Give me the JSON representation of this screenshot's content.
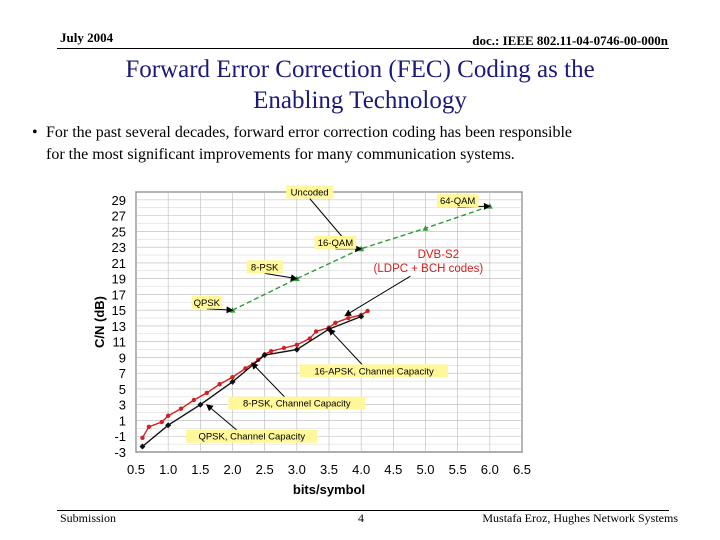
{
  "header": {
    "date": "July 2004",
    "doc_id": "doc.: IEEE 802.11-04-0746-00-000n"
  },
  "slide": {
    "title_line1": "Forward Error Correction (FEC) Coding as the",
    "title_line2": "Enabling Technology",
    "bullet_char": "•",
    "bullet_line1": "For the past several decades, forward error correction coding has been responsible",
    "bullet_line2": "for the most significant improvements for many communication systems."
  },
  "footer": {
    "left": "Submission",
    "page": "4",
    "right": "Mustafa Eroz, Hughes Network Systems"
  },
  "chart_data": {
    "type": "line",
    "xlabel": "bits/symbol",
    "ylabel": "C/N (dB)",
    "xlim": [
      0.5,
      6.5
    ],
    "ylim": [
      -3,
      30
    ],
    "x_ticks": [
      "0.5",
      "1.0",
      "1.5",
      "2.0",
      "2.5",
      "3.0",
      "3.5",
      "4.0",
      "4.5",
      "5.0",
      "5.5",
      "6.0",
      "6.5"
    ],
    "y_ticks": [
      "29",
      "27",
      "25",
      "23",
      "21",
      "19",
      "17",
      "15",
      "13",
      "11",
      "9",
      "7",
      "5",
      "3",
      "1",
      "-1",
      "-3"
    ],
    "grid": true,
    "colors": {
      "uncoded": "#2e9a3a",
      "dvbs2": "#d42020",
      "capacity": "#111111",
      "label_bg": "#fff79a",
      "dvbs2_label": "#d42020"
    },
    "series": [
      {
        "name": "Uncoded",
        "x": [
          2.0,
          3.0,
          4.0,
          5.0,
          6.0
        ],
        "y": [
          15.0,
          19.0,
          22.8,
          25.4,
          28.2
        ]
      },
      {
        "name": "DVB-S2 (LDPC + BCH codes)",
        "x": [
          0.6,
          0.7,
          0.9,
          1.0,
          1.2,
          1.4,
          1.6,
          1.8,
          2.0,
          2.2,
          2.4,
          2.5,
          2.6,
          2.8,
          3.0,
          3.2,
          3.3,
          3.5,
          3.6,
          3.8,
          4.0,
          4.1
        ],
        "y": [
          -1.2,
          0.2,
          0.8,
          1.6,
          2.5,
          3.6,
          4.5,
          5.6,
          6.5,
          7.6,
          8.7,
          9.4,
          9.8,
          10.2,
          10.6,
          11.4,
          12.3,
          12.8,
          13.4,
          14.0,
          14.4,
          14.9
        ]
      },
      {
        "name": "Capacity",
        "x": [
          0.6,
          1.0,
          1.5,
          2.0,
          2.5,
          3.0,
          3.5,
          4.0
        ],
        "y": [
          -2.3,
          0.4,
          3.0,
          5.9,
          9.3,
          10.0,
          12.6,
          14.2
        ]
      }
    ],
    "annotations": [
      {
        "text": "Uncoded",
        "x": 3.2,
        "y": 30.0,
        "arrow_to": [
          3.8,
          23.4
        ]
      },
      {
        "text": "64-QAM",
        "x": 5.5,
        "y": 28.9,
        "arrow_to": [
          6.0,
          28.2
        ]
      },
      {
        "text": "16-QAM",
        "x": 3.6,
        "y": 23.6,
        "arrow_to": [
          4.0,
          22.8
        ]
      },
      {
        "text": "8-PSK",
        "x": 2.5,
        "y": 20.5,
        "arrow_to": [
          3.0,
          19.0
        ]
      },
      {
        "text": "QPSK",
        "x": 1.6,
        "y": 16.0,
        "arrow_to": [
          2.0,
          15.0
        ]
      },
      {
        "text": "DVB-S2",
        "text2": "(LDPC + BCH codes)",
        "x": 5.2,
        "y": 21.6,
        "arrow_to": [
          3.75,
          14.3
        ]
      },
      {
        "text": "16-APSK, Channel Capacity",
        "x": 4.2,
        "y": 7.3,
        "arrow_to": [
          3.5,
          12.6
        ]
      },
      {
        "text": "8-PSK, Channel Capacity",
        "x": 3.0,
        "y": 3.2,
        "arrow_to": [
          2.3,
          8.3
        ]
      },
      {
        "text": "QPSK, Channel Capacity",
        "x": 2.3,
        "y": -1.0,
        "arrow_to": [
          1.6,
          3.0
        ]
      }
    ]
  }
}
